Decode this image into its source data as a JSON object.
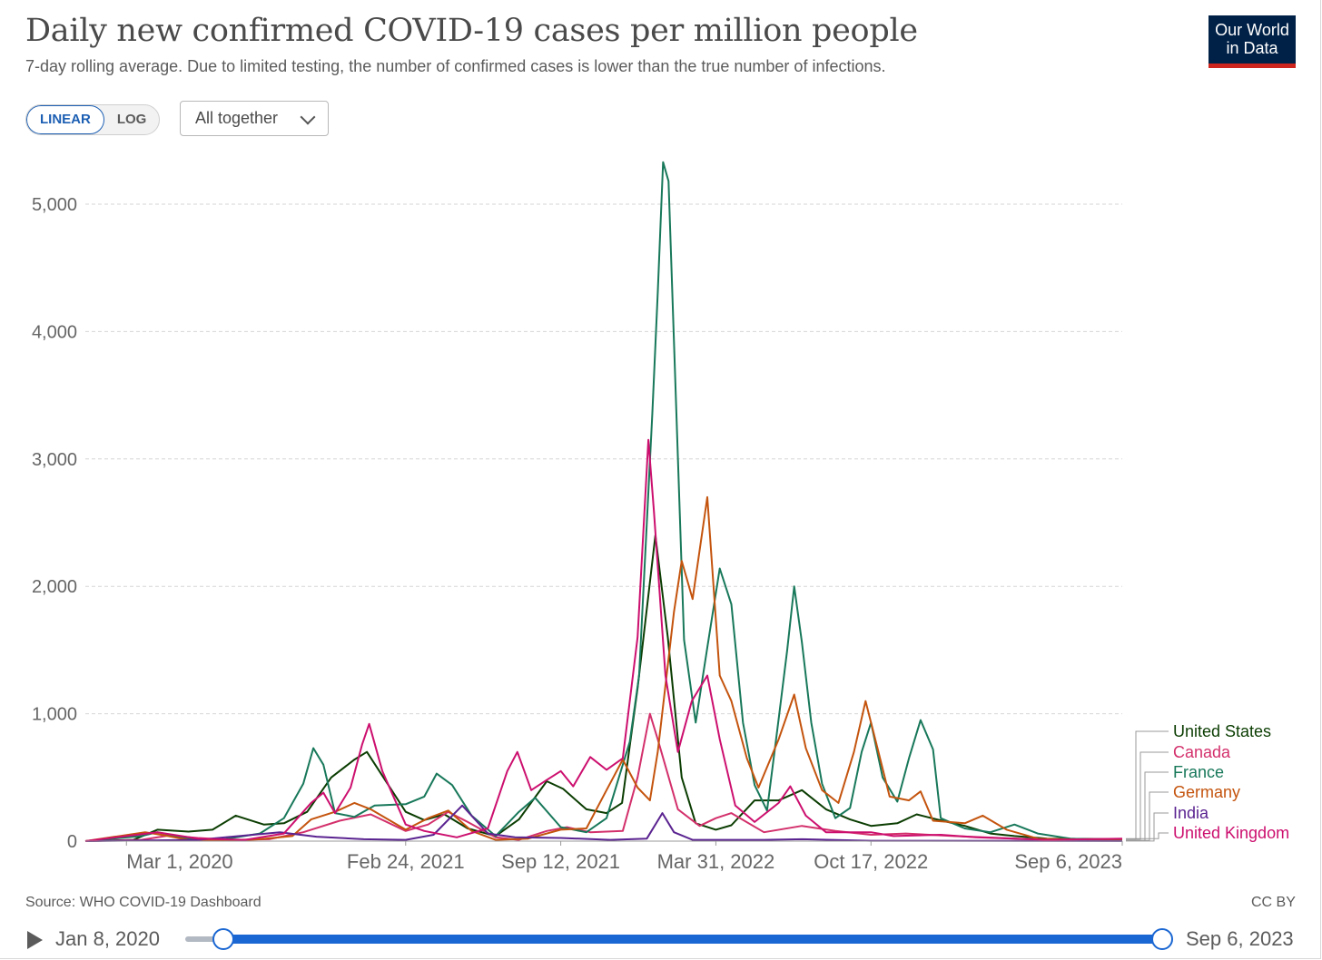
{
  "header": {
    "title": "Daily new confirmed COVID-19 cases per million people",
    "subtitle": "7-day rolling average. Due to limited testing, the number of confirmed cases is lower than the true number of infections.",
    "logo_line1": "Our World",
    "logo_line2": "in Data"
  },
  "controls": {
    "scale_linear": "LINEAR",
    "scale_log": "LOG",
    "dropdown_label": "All together"
  },
  "footer": {
    "source": "Source: WHO COVID-19 Dashboard",
    "license": "CC BY"
  },
  "timeline": {
    "start_label": "Jan 8, 2020",
    "end_label": "Sep 6, 2023"
  },
  "colors": {
    "United States": "#0b3d02",
    "Canada": "#d3306b",
    "France": "#18785a",
    "Germany": "#c4540e",
    "India": "#5a2390",
    "United Kingdom": "#cc0f6e",
    "grid": "#d6d6d6",
    "accent": "#1a66d2"
  },
  "chart_data": {
    "type": "line",
    "title": "Daily new confirmed COVID-19 cases per million people",
    "subtitle": "7-day rolling average. Due to limited testing, the number of confirmed cases is lower than the true number of infections.",
    "xlabel": "",
    "ylabel": "",
    "x_range": [
      "2020-01-08",
      "2023-09-06"
    ],
    "ylim": [
      0,
      5400
    ],
    "yticks": [
      0,
      1000,
      2000,
      3000,
      4000,
      5000
    ],
    "ytick_labels": [
      "0",
      "1,000",
      "2,000",
      "3,000",
      "4,000",
      "5,000"
    ],
    "xticks": [
      "2020-03-01",
      "2021-02-24",
      "2021-09-12",
      "2022-03-31",
      "2022-10-17",
      "2023-09-06"
    ],
    "xtick_labels": [
      "Mar 1, 2020",
      "Feb 24, 2021",
      "Sep 12, 2021",
      "Mar 31, 2022",
      "Oct 17, 2022",
      "Sep 6, 2023"
    ],
    "grid": "horizontal dashed",
    "legend_position": "right (end labels)",
    "series": [
      {
        "name": "United States",
        "points": [
          [
            "2020-01-08",
            0
          ],
          [
            "2020-03-10",
            10
          ],
          [
            "2020-04-10",
            90
          ],
          [
            "2020-05-20",
            75
          ],
          [
            "2020-06-20",
            90
          ],
          [
            "2020-07-20",
            200
          ],
          [
            "2020-08-25",
            130
          ],
          [
            "2020-09-20",
            140
          ],
          [
            "2020-10-20",
            230
          ],
          [
            "2020-11-20",
            500
          ],
          [
            "2020-12-20",
            640
          ],
          [
            "2021-01-05",
            700
          ],
          [
            "2021-01-20",
            560
          ],
          [
            "2021-02-24",
            230
          ],
          [
            "2021-03-20",
            165
          ],
          [
            "2021-04-15",
            210
          ],
          [
            "2021-05-15",
            100
          ],
          [
            "2021-06-20",
            40
          ],
          [
            "2021-07-20",
            170
          ],
          [
            "2021-08-25",
            470
          ],
          [
            "2021-09-15",
            410
          ],
          [
            "2021-10-15",
            250
          ],
          [
            "2021-11-10",
            220
          ],
          [
            "2021-11-30",
            300
          ],
          [
            "2021-12-20",
            1200
          ],
          [
            "2022-01-12",
            2400
          ],
          [
            "2022-01-28",
            1600
          ],
          [
            "2022-02-15",
            500
          ],
          [
            "2022-03-05",
            140
          ],
          [
            "2022-03-31",
            90
          ],
          [
            "2022-04-20",
            125
          ],
          [
            "2022-05-20",
            320
          ],
          [
            "2022-06-20",
            320
          ],
          [
            "2022-07-20",
            400
          ],
          [
            "2022-08-20",
            250
          ],
          [
            "2022-09-20",
            170
          ],
          [
            "2022-10-17",
            120
          ],
          [
            "2022-11-20",
            140
          ],
          [
            "2022-12-15",
            210
          ],
          [
            "2023-01-10",
            170
          ],
          [
            "2023-02-15",
            120
          ],
          [
            "2023-03-20",
            60
          ],
          [
            "2023-04-20",
            40
          ],
          [
            "2023-06-01",
            20
          ],
          [
            "2023-09-06",
            15
          ]
        ]
      },
      {
        "name": "Canada",
        "points": [
          [
            "2020-01-08",
            0
          ],
          [
            "2020-03-20",
            10
          ],
          [
            "2020-04-25",
            45
          ],
          [
            "2020-06-01",
            25
          ],
          [
            "2020-07-15",
            10
          ],
          [
            "2020-09-01",
            15
          ],
          [
            "2020-10-15",
            70
          ],
          [
            "2020-12-01",
            160
          ],
          [
            "2021-01-10",
            210
          ],
          [
            "2021-02-24",
            80
          ],
          [
            "2021-03-25",
            130
          ],
          [
            "2021-04-20",
            230
          ],
          [
            "2021-05-15",
            150
          ],
          [
            "2021-06-20",
            30
          ],
          [
            "2021-07-20",
            10
          ],
          [
            "2021-08-25",
            80
          ],
          [
            "2021-09-20",
            110
          ],
          [
            "2021-10-20",
            70
          ],
          [
            "2021-12-01",
            80
          ],
          [
            "2021-12-20",
            500
          ],
          [
            "2022-01-05",
            1000
          ],
          [
            "2022-01-15",
            800
          ],
          [
            "2022-02-10",
            250
          ],
          [
            "2022-03-10",
            120
          ],
          [
            "2022-03-31",
            180
          ],
          [
            "2022-04-20",
            220
          ],
          [
            "2022-06-01",
            70
          ],
          [
            "2022-07-20",
            120
          ],
          [
            "2022-09-01",
            80
          ],
          [
            "2022-10-17",
            50
          ],
          [
            "2022-12-01",
            60
          ],
          [
            "2023-02-01",
            40
          ],
          [
            "2023-04-01",
            25
          ],
          [
            "2023-06-01",
            10
          ],
          [
            "2023-09-06",
            15
          ]
        ]
      },
      {
        "name": "France",
        "points": [
          [
            "2020-01-08",
            0
          ],
          [
            "2020-03-20",
            40
          ],
          [
            "2020-04-10",
            70
          ],
          [
            "2020-05-20",
            20
          ],
          [
            "2020-06-30",
            10
          ],
          [
            "2020-08-20",
            60
          ],
          [
            "2020-09-20",
            180
          ],
          [
            "2020-10-15",
            450
          ],
          [
            "2020-10-28",
            730
          ],
          [
            "2020-11-10",
            600
          ],
          [
            "2020-11-25",
            220
          ],
          [
            "2020-12-20",
            190
          ],
          [
            "2021-01-15",
            280
          ],
          [
            "2021-02-24",
            290
          ],
          [
            "2021-03-20",
            350
          ],
          [
            "2021-04-05",
            530
          ],
          [
            "2021-04-25",
            440
          ],
          [
            "2021-05-20",
            200
          ],
          [
            "2021-06-20",
            40
          ],
          [
            "2021-07-20",
            230
          ],
          [
            "2021-08-10",
            340
          ],
          [
            "2021-09-12",
            110
          ],
          [
            "2021-10-15",
            70
          ],
          [
            "2021-11-10",
            180
          ],
          [
            "2021-11-25",
            480
          ],
          [
            "2021-12-10",
            780
          ],
          [
            "2021-12-22",
            1300
          ],
          [
            "2022-01-01",
            2500
          ],
          [
            "2022-01-08",
            3350
          ],
          [
            "2022-01-15",
            4300
          ],
          [
            "2022-01-22",
            5330
          ],
          [
            "2022-01-29",
            5180
          ],
          [
            "2022-02-08",
            3370
          ],
          [
            "2022-02-18",
            1580
          ],
          [
            "2022-03-05",
            930
          ],
          [
            "2022-03-20",
            1520
          ],
          [
            "2022-04-05",
            2140
          ],
          [
            "2022-04-20",
            1860
          ],
          [
            "2022-05-05",
            930
          ],
          [
            "2022-05-20",
            440
          ],
          [
            "2022-06-05",
            240
          ],
          [
            "2022-06-20",
            960
          ],
          [
            "2022-07-01",
            1500
          ],
          [
            "2022-07-10",
            2000
          ],
          [
            "2022-07-20",
            1560
          ],
          [
            "2022-08-01",
            930
          ],
          [
            "2022-08-15",
            450
          ],
          [
            "2022-09-01",
            180
          ],
          [
            "2022-09-20",
            260
          ],
          [
            "2022-10-05",
            700
          ],
          [
            "2022-10-17",
            930
          ],
          [
            "2022-11-01",
            500
          ],
          [
            "2022-11-20",
            310
          ],
          [
            "2022-12-05",
            650
          ],
          [
            "2022-12-20",
            950
          ],
          [
            "2023-01-05",
            720
          ],
          [
            "2023-01-15",
            180
          ],
          [
            "2023-02-15",
            100
          ],
          [
            "2023-03-20",
            70
          ],
          [
            "2023-04-20",
            130
          ],
          [
            "2023-05-20",
            60
          ],
          [
            "2023-07-01",
            20
          ],
          [
            "2023-09-06",
            5
          ]
        ]
      },
      {
        "name": "Germany",
        "points": [
          [
            "2020-01-08",
            0
          ],
          [
            "2020-03-25",
            70
          ],
          [
            "2020-04-15",
            50
          ],
          [
            "2020-05-20",
            10
          ],
          [
            "2020-07-20",
            5
          ],
          [
            "2020-08-20",
            15
          ],
          [
            "2020-10-01",
            40
          ],
          [
            "2020-10-25",
            170
          ],
          [
            "2020-11-25",
            230
          ],
          [
            "2020-12-20",
            300
          ],
          [
            "2021-01-10",
            250
          ],
          [
            "2021-02-24",
            90
          ],
          [
            "2021-03-25",
            180
          ],
          [
            "2021-04-20",
            240
          ],
          [
            "2021-05-20",
            80
          ],
          [
            "2021-06-20",
            10
          ],
          [
            "2021-08-01",
            20
          ],
          [
            "2021-09-12",
            90
          ],
          [
            "2021-10-15",
            100
          ],
          [
            "2021-11-10",
            400
          ],
          [
            "2021-12-01",
            640
          ],
          [
            "2021-12-20",
            420
          ],
          [
            "2022-01-05",
            320
          ],
          [
            "2022-01-15",
            700
          ],
          [
            "2022-02-05",
            1800
          ],
          [
            "2022-02-15",
            2200
          ],
          [
            "2022-03-01",
            1900
          ],
          [
            "2022-03-20",
            2700
          ],
          [
            "2022-04-05",
            1300
          ],
          [
            "2022-04-20",
            1100
          ],
          [
            "2022-05-10",
            650
          ],
          [
            "2022-05-25",
            420
          ],
          [
            "2022-06-20",
            800
          ],
          [
            "2022-07-10",
            1150
          ],
          [
            "2022-07-25",
            730
          ],
          [
            "2022-08-15",
            400
          ],
          [
            "2022-09-05",
            300
          ],
          [
            "2022-09-25",
            700
          ],
          [
            "2022-10-10",
            1100
          ],
          [
            "2022-10-25",
            740
          ],
          [
            "2022-11-10",
            350
          ],
          [
            "2022-12-05",
            320
          ],
          [
            "2022-12-20",
            390
          ],
          [
            "2023-01-05",
            160
          ],
          [
            "2023-02-15",
            140
          ],
          [
            "2023-03-10",
            200
          ],
          [
            "2023-04-10",
            90
          ],
          [
            "2023-05-20",
            20
          ],
          [
            "2023-09-06",
            5
          ]
        ]
      },
      {
        "name": "India",
        "points": [
          [
            "2020-01-08",
            0
          ],
          [
            "2020-06-01",
            10
          ],
          [
            "2020-09-15",
            70
          ],
          [
            "2020-11-01",
            35
          ],
          [
            "2021-01-01",
            15
          ],
          [
            "2021-02-24",
            10
          ],
          [
            "2021-04-01",
            50
          ],
          [
            "2021-05-08",
            280
          ],
          [
            "2021-06-10",
            60
          ],
          [
            "2021-07-15",
            30
          ],
          [
            "2021-09-12",
            25
          ],
          [
            "2021-11-15",
            10
          ],
          [
            "2022-01-01",
            20
          ],
          [
            "2022-01-21",
            220
          ],
          [
            "2022-02-05",
            70
          ],
          [
            "2022-03-01",
            10
          ],
          [
            "2022-06-01",
            10
          ],
          [
            "2022-07-20",
            15
          ],
          [
            "2022-10-17",
            3
          ],
          [
            "2023-09-06",
            1
          ]
        ]
      },
      {
        "name": "United Kingdom",
        "points": [
          [
            "2020-01-08",
            0
          ],
          [
            "2020-04-10",
            70
          ],
          [
            "2020-06-01",
            20
          ],
          [
            "2020-08-01",
            10
          ],
          [
            "2020-09-20",
            60
          ],
          [
            "2020-10-25",
            300
          ],
          [
            "2020-11-10",
            380
          ],
          [
            "2020-11-25",
            220
          ],
          [
            "2020-12-15",
            420
          ],
          [
            "2020-12-30",
            760
          ],
          [
            "2021-01-08",
            920
          ],
          [
            "2021-01-25",
            550
          ],
          [
            "2021-02-24",
            130
          ],
          [
            "2021-03-20",
            80
          ],
          [
            "2021-05-01",
            30
          ],
          [
            "2021-06-10",
            100
          ],
          [
            "2021-07-05",
            550
          ],
          [
            "2021-07-18",
            700
          ],
          [
            "2021-08-05",
            400
          ],
          [
            "2021-08-25",
            480
          ],
          [
            "2021-09-12",
            550
          ],
          [
            "2021-09-28",
            430
          ],
          [
            "2021-10-20",
            660
          ],
          [
            "2021-11-10",
            560
          ],
          [
            "2021-12-01",
            650
          ],
          [
            "2021-12-20",
            1600
          ],
          [
            "2022-01-03",
            3150
          ],
          [
            "2022-01-10",
            2600
          ],
          [
            "2022-01-25",
            1300
          ],
          [
            "2022-02-10",
            700
          ],
          [
            "2022-02-28",
            1100
          ],
          [
            "2022-03-20",
            1300
          ],
          [
            "2022-04-05",
            800
          ],
          [
            "2022-04-25",
            280
          ],
          [
            "2022-05-20",
            150
          ],
          [
            "2022-06-20",
            300
          ],
          [
            "2022-07-05",
            430
          ],
          [
            "2022-07-25",
            200
          ],
          [
            "2022-08-20",
            70
          ],
          [
            "2022-10-17",
            70
          ],
          [
            "2022-11-15",
            40
          ],
          [
            "2023-01-15",
            50
          ],
          [
            "2023-03-01",
            30
          ],
          [
            "2023-06-01",
            10
          ],
          [
            "2023-09-06",
            20
          ]
        ]
      }
    ]
  }
}
